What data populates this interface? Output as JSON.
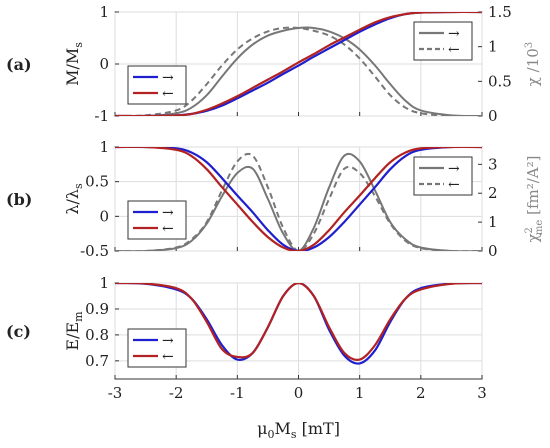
{
  "chart_data": [
    {
      "type": "line",
      "panel_label": "(a)",
      "ylabel": "M/M_s",
      "ylabel_parts": [
        "M/M",
        "s"
      ],
      "ylim": [
        -1,
        1
      ],
      "yticks": [
        "-1",
        "0",
        "1"
      ],
      "ytick_values": [
        -1,
        0,
        1
      ],
      "ylabel_right": "χ /10³",
      "ylabel_right_parts": [
        "χ /10",
        "3"
      ],
      "ylim_right": [
        0,
        1.5
      ],
      "yticks_right": [
        "0",
        "0.5",
        "1",
        "1.5"
      ],
      "ytick_values_right": [
        0,
        0.5,
        1,
        1.5
      ],
      "xlim": [
        -3,
        3
      ],
      "grid": true,
      "legends": [
        {
          "position": "bottom-left",
          "entries": [
            {
              "label": "→",
              "color": "#1f1fd0",
              "dash": false
            },
            {
              "label": "←",
              "color": "#b22222",
              "dash": false
            }
          ]
        },
        {
          "position": "top-right",
          "entries": [
            {
              "label": "→",
              "color": "#777777",
              "dash": false
            },
            {
              "label": "←",
              "color": "#777777",
              "dash": true
            }
          ]
        }
      ],
      "series": [
        {
          "name": "→",
          "axis": "left",
          "color": "#1f1fd0",
          "x": [
            -3.0,
            -2.5,
            -2.0,
            -1.75,
            -1.5,
            -1.25,
            -1.0,
            -0.75,
            -0.5,
            -0.25,
            0.0,
            0.25,
            0.5,
            0.75,
            1.0,
            1.25,
            1.5,
            1.75,
            2.0,
            2.5,
            3.0
          ],
          "y": [
            -1.0,
            -1.0,
            -0.99,
            -0.96,
            -0.9,
            -0.8,
            -0.66,
            -0.51,
            -0.36,
            -0.19,
            -0.03,
            0.14,
            0.3,
            0.46,
            0.62,
            0.76,
            0.88,
            0.96,
            0.99,
            1.0,
            1.0
          ]
        },
        {
          "name": "←",
          "axis": "left",
          "color": "#b22222",
          "x": [
            -3.0,
            -2.5,
            -2.0,
            -1.75,
            -1.5,
            -1.25,
            -1.0,
            -0.75,
            -0.5,
            -0.25,
            0.0,
            0.25,
            0.5,
            0.75,
            1.0,
            1.25,
            1.5,
            1.75,
            2.0,
            2.5,
            3.0
          ],
          "y": [
            -1.0,
            -1.0,
            -0.99,
            -0.96,
            -0.88,
            -0.76,
            -0.62,
            -0.46,
            -0.3,
            -0.14,
            0.03,
            0.19,
            0.36,
            0.51,
            0.66,
            0.8,
            0.9,
            0.96,
            0.99,
            1.0,
            1.0
          ]
        },
        {
          "name": "χ →",
          "axis": "right",
          "color": "#777777",
          "dash": false,
          "x": [
            -3.0,
            -2.5,
            -2.0,
            -1.75,
            -1.5,
            -1.25,
            -1.0,
            -0.75,
            -0.5,
            -0.25,
            0.0,
            0.25,
            0.5,
            0.75,
            1.0,
            1.25,
            1.5,
            1.75,
            2.0,
            2.5,
            3.0
          ],
          "y": [
            0.0,
            0.0,
            0.04,
            0.12,
            0.3,
            0.57,
            0.83,
            1.03,
            1.16,
            1.23,
            1.27,
            1.27,
            1.22,
            1.12,
            0.96,
            0.73,
            0.46,
            0.22,
            0.08,
            0.01,
            0.0
          ]
        },
        {
          "name": "χ ←",
          "axis": "right",
          "color": "#777777",
          "dash": true,
          "x": [
            -3.0,
            -2.5,
            -2.0,
            -1.75,
            -1.5,
            -1.25,
            -1.0,
            -0.75,
            -0.5,
            -0.25,
            0.0,
            0.25,
            0.5,
            0.75,
            1.0,
            1.25,
            1.5,
            1.75,
            2.0,
            2.5,
            3.0
          ],
          "y": [
            0.0,
            0.01,
            0.08,
            0.22,
            0.46,
            0.73,
            0.96,
            1.12,
            1.22,
            1.27,
            1.27,
            1.23,
            1.16,
            1.03,
            0.83,
            0.57,
            0.3,
            0.12,
            0.04,
            0.0,
            0.0
          ]
        }
      ]
    },
    {
      "type": "line",
      "panel_label": "(b)",
      "ylabel": "λ/λ_s",
      "ylabel_parts": [
        "λ/λ",
        "s"
      ],
      "ylim": [
        -0.5,
        1
      ],
      "yticks": [
        "-0.5",
        "0",
        "0.5",
        "1"
      ],
      "ytick_values": [
        -0.5,
        0,
        0.5,
        1
      ],
      "ylabel_right": "χ²_me [fm²/A²]",
      "ylabel_right_parts": [
        "χ",
        "2",
        "me",
        " [fm²/A²]"
      ],
      "ylim_right": [
        0,
        3.6
      ],
      "yticks_right": [
        "0",
        "1",
        "2",
        "3"
      ],
      "ytick_values_right": [
        0,
        1,
        2,
        3
      ],
      "xlim": [
        -3,
        3
      ],
      "grid": true,
      "legends": [
        {
          "position": "bottom-left",
          "entries": [
            {
              "label": "→",
              "color": "#1f1fd0",
              "dash": false
            },
            {
              "label": "←",
              "color": "#b22222",
              "dash": false
            }
          ]
        },
        {
          "position": "top-right",
          "entries": [
            {
              "label": "→",
              "color": "#777777",
              "dash": false
            },
            {
              "label": "←",
              "color": "#777777",
              "dash": true
            }
          ]
        }
      ],
      "series": [
        {
          "name": "→",
          "axis": "left",
          "color": "#1f1fd0",
          "x": [
            -3.0,
            -2.5,
            -2.0,
            -1.75,
            -1.5,
            -1.25,
            -1.0,
            -0.75,
            -0.5,
            -0.25,
            0.0,
            0.25,
            0.5,
            0.75,
            1.0,
            1.25,
            1.5,
            1.75,
            2.0,
            2.5,
            3.0
          ],
          "y": [
            1.0,
            1.0,
            0.98,
            0.92,
            0.78,
            0.55,
            0.3,
            0.06,
            -0.2,
            -0.41,
            -0.5,
            -0.45,
            -0.3,
            -0.08,
            0.17,
            0.42,
            0.68,
            0.87,
            0.96,
            1.0,
            1.0
          ]
        },
        {
          "name": "←",
          "axis": "left",
          "color": "#b22222",
          "x": [
            -3.0,
            -2.5,
            -2.0,
            -1.75,
            -1.5,
            -1.25,
            -1.0,
            -0.75,
            -0.5,
            -0.25,
            0.0,
            0.25,
            0.5,
            0.75,
            1.0,
            1.25,
            1.5,
            1.75,
            2.0,
            2.5,
            3.0
          ],
          "y": [
            1.0,
            1.0,
            0.96,
            0.87,
            0.68,
            0.42,
            0.17,
            -0.08,
            -0.3,
            -0.45,
            -0.5,
            -0.41,
            -0.2,
            0.06,
            0.3,
            0.55,
            0.78,
            0.92,
            0.98,
            1.0,
            1.0
          ]
        },
        {
          "name": "χ²me →",
          "axis": "right",
          "color": "#777777",
          "dash": false,
          "x": [
            -3.0,
            -2.5,
            -2.0,
            -1.75,
            -1.5,
            -1.25,
            -1.0,
            -0.75,
            -0.5,
            -0.25,
            0.0,
            0.25,
            0.5,
            0.75,
            1.0,
            1.25,
            1.5,
            1.75,
            2.0,
            2.5,
            3.0
          ],
          "y": [
            0.0,
            0.0,
            0.1,
            0.35,
            0.95,
            1.9,
            2.7,
            2.85,
            1.8,
            0.6,
            0.0,
            0.8,
            2.2,
            3.3,
            3.1,
            2.1,
            1.0,
            0.4,
            0.12,
            0.0,
            0.0
          ]
        },
        {
          "name": "χ²me ←",
          "axis": "right",
          "color": "#777777",
          "dash": true,
          "x": [
            -3.0,
            -2.5,
            -2.0,
            -1.75,
            -1.5,
            -1.25,
            -1.0,
            -0.75,
            -0.5,
            -0.25,
            0.0,
            0.25,
            0.5,
            0.75,
            1.0,
            1.25,
            1.5,
            1.75,
            2.0,
            2.5,
            3.0
          ],
          "y": [
            0.0,
            0.0,
            0.12,
            0.4,
            1.0,
            2.1,
            3.1,
            3.3,
            2.2,
            0.8,
            0.0,
            0.6,
            1.8,
            2.85,
            2.7,
            1.9,
            0.95,
            0.35,
            0.1,
            0.0,
            0.0
          ]
        }
      ]
    },
    {
      "type": "line",
      "panel_label": "(c)",
      "ylabel": "E/E_m",
      "ylabel_parts": [
        "E/E",
        "m"
      ],
      "ylim": [
        0.63,
        1.0
      ],
      "yticks": [
        "0.7",
        "0.8",
        "0.9",
        "1"
      ],
      "ytick_values": [
        0.7,
        0.8,
        0.9,
        1.0
      ],
      "xlim": [
        -3,
        3
      ],
      "xticks": [
        "-3",
        "-2",
        "-1",
        "0",
        "1",
        "2",
        "3"
      ],
      "xtick_values": [
        -3,
        -2,
        -1,
        0,
        1,
        2,
        3
      ],
      "xlabel": "μ0Ms [mT]",
      "xlabel_parts": [
        "μ",
        "0",
        "M",
        "s",
        " [mT]"
      ],
      "grid": true,
      "legends": [
        {
          "position": "bottom-left",
          "entries": [
            {
              "label": "→",
              "color": "#1f1fd0",
              "dash": false
            },
            {
              "label": "←",
              "color": "#b22222",
              "dash": false
            }
          ]
        }
      ],
      "series": [
        {
          "name": "→",
          "axis": "left",
          "color": "#1f1fd0",
          "x": [
            -3.0,
            -2.5,
            -2.0,
            -1.75,
            -1.5,
            -1.25,
            -1.0,
            -0.75,
            -0.5,
            -0.25,
            0.0,
            0.25,
            0.5,
            0.75,
            1.0,
            1.25,
            1.5,
            1.75,
            2.0,
            2.5,
            3.0
          ],
          "y": [
            1.0,
            0.997,
            0.975,
            0.94,
            0.86,
            0.76,
            0.705,
            0.73,
            0.83,
            0.95,
            1.0,
            0.95,
            0.82,
            0.72,
            0.69,
            0.74,
            0.85,
            0.94,
            0.98,
            0.998,
            1.0
          ]
        },
        {
          "name": "←",
          "axis": "left",
          "color": "#b22222",
          "x": [
            -3.0,
            -2.5,
            -2.0,
            -1.75,
            -1.5,
            -1.25,
            -1.0,
            -0.75,
            -0.5,
            -0.25,
            0.0,
            0.25,
            0.5,
            0.75,
            1.0,
            1.25,
            1.5,
            1.75,
            2.0,
            2.5,
            3.0
          ],
          "y": [
            1.0,
            0.998,
            0.98,
            0.94,
            0.85,
            0.745,
            0.715,
            0.73,
            0.83,
            0.95,
            1.0,
            0.95,
            0.83,
            0.73,
            0.705,
            0.76,
            0.86,
            0.94,
            0.975,
            0.997,
            1.0
          ]
        }
      ]
    }
  ]
}
